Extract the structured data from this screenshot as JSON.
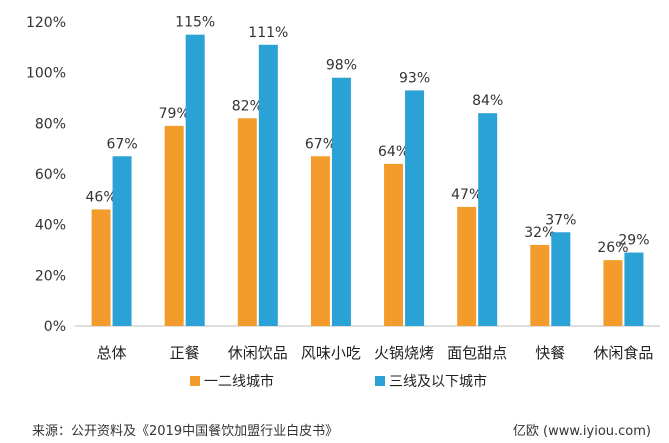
{
  "chart_data": {
    "type": "bar",
    "categories": [
      "总体",
      "正餐",
      "休闲饮品",
      "风味小吃",
      "火锅烧烤",
      "面包甜点",
      "快餐",
      "休闲食品"
    ],
    "series": [
      {
        "name": "一二线城市",
        "color": "#f39c2b",
        "values": [
          46,
          79,
          82,
          67,
          64,
          47,
          32,
          26
        ]
      },
      {
        "name": "三线及以下城市",
        "color": "#2aa2d5",
        "values": [
          67,
          115,
          111,
          98,
          93,
          84,
          37,
          29
        ]
      }
    ],
    "data_labels": [
      [
        "46%",
        "79%",
        "82%",
        "67%",
        "64%",
        "47%",
        "32%",
        "26%"
      ],
      [
        "67%",
        "115%",
        "111%",
        "98%",
        "93%",
        "84%",
        "37%",
        "29%"
      ]
    ],
    "y_ticks": [
      "0%",
      "20%",
      "40%",
      "60%",
      "80%",
      "100%",
      "120%"
    ],
    "ylim": [
      0,
      120
    ],
    "y_unit": "%",
    "grid": false,
    "legend_position": "bottom-center"
  },
  "source_text": "来源：公开资料及《2019中国餐饮加盟行业白皮书》",
  "watermark_text": "亿欧 (www.iyiou.com)"
}
